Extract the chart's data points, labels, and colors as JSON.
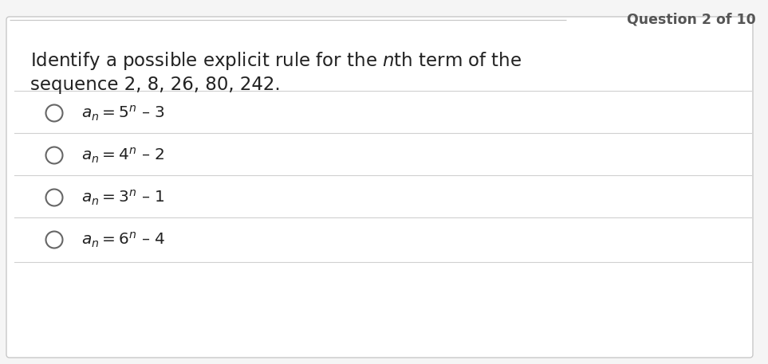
{
  "question_label": "Question 2 of 10",
  "question_line1_pre": "Identify a possible explicit rule for the ",
  "question_line1_italic": "n",
  "question_line1_post": "th term of the",
  "question_line2": "sequence 2, 8, 26, 80, 242.",
  "options": [
    {
      "base": "5",
      "sub": "3"
    },
    {
      "base": "4",
      "sub": "2"
    },
    {
      "base": "3",
      "sub": "1"
    },
    {
      "base": "6",
      "sub": "4"
    }
  ],
  "bg_color": "#ffffff",
  "outer_bg": "#f5f5f5",
  "border_color": "#c8c8c8",
  "text_color": "#222222",
  "divider_color": "#d0d0d0",
  "label_color": "#555555",
  "circle_color": "#666666",
  "question_fontsize": 16.5,
  "option_fontsize": 14.5,
  "label_fontsize": 12.5
}
